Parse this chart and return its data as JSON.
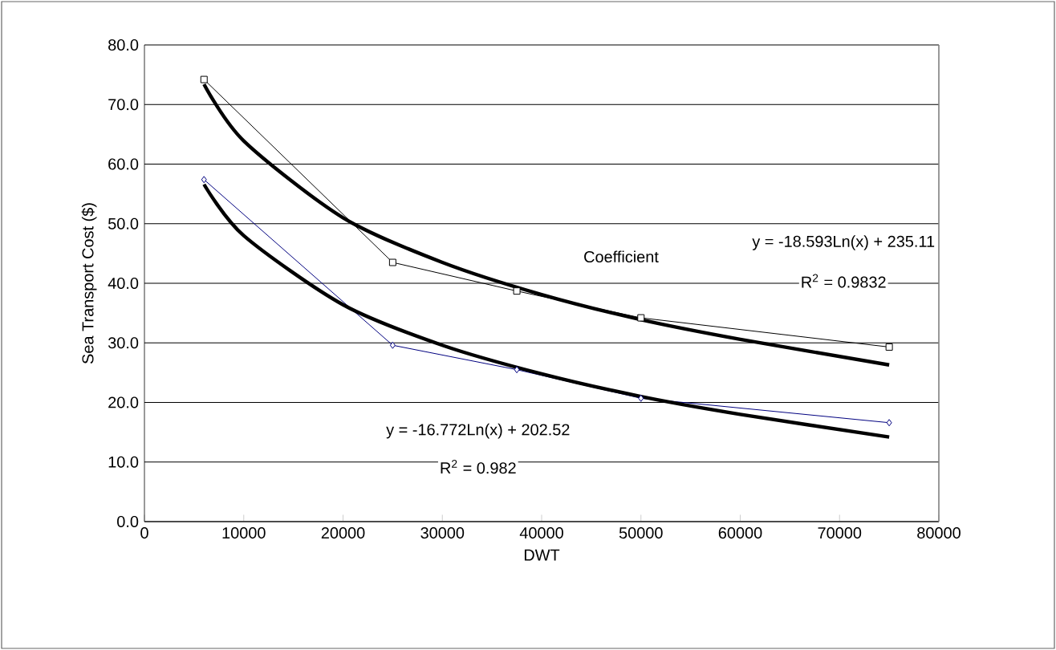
{
  "chart_data": {
    "type": "line",
    "xlabel": "DWT",
    "ylabel": "Sea Transport Cost ($)",
    "x": [
      6000,
      25000,
      37500,
      50000,
      75000
    ],
    "series": [
      {
        "color": "#000000",
        "marker": "square",
        "values": [
          74.2,
          43.5,
          38.7,
          34.2,
          29.3
        ]
      },
      {
        "color": "#000080",
        "marker": "diamond",
        "values": [
          57.4,
          29.6,
          25.5,
          20.7,
          16.6
        ]
      },
      {
        "color": "#000000",
        "marker": "none",
        "x": [
          6000,
          10000,
          20000,
          30000,
          40000,
          50000,
          60000,
          75000
        ],
        "values": [
          73.4,
          63.9,
          51.0,
          43.5,
          38.1,
          33.9,
          30.6,
          26.3
        ]
      },
      {
        "color": "#000000",
        "marker": "none",
        "x": [
          6000,
          10000,
          20000,
          30000,
          40000,
          50000,
          60000,
          75000
        ],
        "values": [
          56.6,
          48.0,
          36.4,
          29.6,
          24.8,
          21.0,
          18.0,
          14.2
        ]
      }
    ],
    "xlim": [
      0,
      80000
    ],
    "xticks": [
      0,
      10000,
      20000,
      30000,
      40000,
      50000,
      60000,
      70000,
      80000
    ],
    "ylim": [
      0,
      80
    ],
    "yticks": [
      {
        "value": 0,
        "label": "0.0"
      },
      {
        "value": 10,
        "label": "10.0"
      },
      {
        "value": 20,
        "label": "20.0"
      },
      {
        "value": 30,
        "label": "30.0"
      },
      {
        "value": 40,
        "label": "40.0"
      },
      {
        "value": 50,
        "label": "50.0"
      },
      {
        "value": 60,
        "label": "60.0"
      },
      {
        "value": 70,
        "label": "70.0"
      },
      {
        "value": 80,
        "label": "80.0"
      }
    ],
    "grid": "y",
    "annotations": [
      "Coefficient",
      "y = -18.593Ln(x) + 235.11",
      "R$^{2}$ = 0.9832",
      "y = -16.772Ln(x) + 202.52",
      "R$^{2}$ = 0.982"
    ]
  }
}
